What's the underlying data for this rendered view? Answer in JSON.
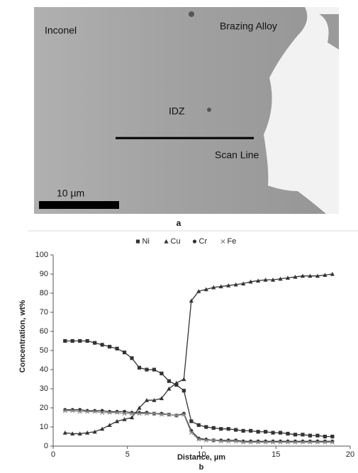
{
  "figure_a": {
    "labels": [
      "Inconel",
      "Brazing Alloy",
      "IDZ",
      "Scan Line"
    ],
    "scale_bar": "10 µm",
    "caption": "a"
  },
  "caption_b": "b",
  "chart_data": {
    "type": "line",
    "x_label": "Distance, µm",
    "y_label": "Concentration, wt%",
    "x": [
      0.8,
      1.3,
      1.8,
      2.3,
      2.8,
      3.3,
      3.8,
      4.3,
      4.8,
      5.3,
      5.8,
      6.3,
      6.8,
      7.3,
      7.8,
      8.3,
      8.8,
      9.3,
      9.8,
      10.3,
      10.8,
      11.3,
      11.8,
      12.3,
      12.8,
      13.3,
      13.8,
      14.3,
      14.8,
      15.3,
      15.8,
      16.3,
      16.8,
      17.3,
      17.8,
      18.3,
      18.8
    ],
    "series": [
      {
        "name": "Ni",
        "color": "#333333",
        "marker": "square",
        "values": [
          55,
          55,
          55,
          55,
          54,
          53,
          52,
          51,
          49,
          46,
          41,
          40,
          40,
          38,
          34,
          32,
          29,
          13,
          11,
          10,
          9.5,
          9,
          9,
          8.5,
          8,
          8,
          7.5,
          7.5,
          7,
          7,
          6.5,
          6,
          6,
          5.5,
          5.5,
          5,
          5
        ]
      },
      {
        "name": "Cu",
        "color": "#333333",
        "marker": "triangle",
        "values": [
          7,
          6.5,
          6.5,
          7,
          7.5,
          9,
          11,
          13,
          14,
          15,
          20,
          24,
          24,
          25,
          30,
          33,
          35,
          76,
          81,
          82,
          83,
          83.5,
          84,
          84.5,
          85,
          86,
          86.5,
          87,
          87,
          87.5,
          88,
          88.5,
          89,
          89,
          89,
          89.5,
          90
        ]
      },
      {
        "name": "Cr",
        "color": "#333333",
        "marker": "circle",
        "values": [
          19,
          19,
          19,
          18.5,
          18.5,
          18.5,
          18,
          18,
          18,
          17.5,
          17.5,
          17.5,
          17,
          17,
          16.5,
          16,
          17,
          8,
          4,
          3.5,
          3,
          3,
          3,
          3,
          2.5,
          2.5,
          2.5,
          2.5,
          2.5,
          2.5,
          2.5,
          2.5,
          2.5,
          2.5,
          2.5,
          2.5,
          2.5
        ]
      },
      {
        "name": "Fe",
        "color": "#888888",
        "marker": "cross",
        "values": [
          18.5,
          18.5,
          18,
          18,
          18,
          17.5,
          17.5,
          17.5,
          17,
          17,
          17,
          17,
          17,
          16.5,
          16.5,
          16,
          16.5,
          7,
          3.5,
          3,
          3,
          2.5,
          2.5,
          2.5,
          2,
          2,
          2,
          2,
          2,
          2,
          2,
          2,
          2,
          2,
          2,
          2,
          2
        ]
      }
    ],
    "xlim": [
      0,
      20
    ],
    "xticks": [
      0,
      5,
      10,
      15,
      20
    ],
    "ylim": [
      0,
      100
    ],
    "yticks": [
      0,
      10,
      20,
      30,
      40,
      50,
      60,
      70,
      80,
      90,
      100
    ],
    "legend": "top"
  }
}
